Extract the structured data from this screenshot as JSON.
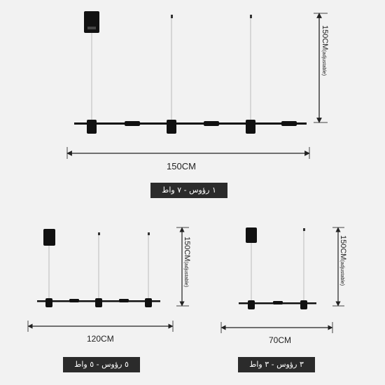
{
  "fixtures": [
    {
      "width_label": "150CM",
      "height_label": "150CM",
      "height_note": "(adjustable)",
      "caption": "١ رؤوس - ٧ واط"
    },
    {
      "width_label": "120CM",
      "height_label": "150CM",
      "height_note": "(adjustable)",
      "caption": "٥ رؤوس - ٥ واط"
    },
    {
      "width_label": "70CM",
      "height_label": "150CM",
      "height_note": "(adjustable)",
      "caption": "٣ رؤوس - ٣ واط"
    }
  ]
}
